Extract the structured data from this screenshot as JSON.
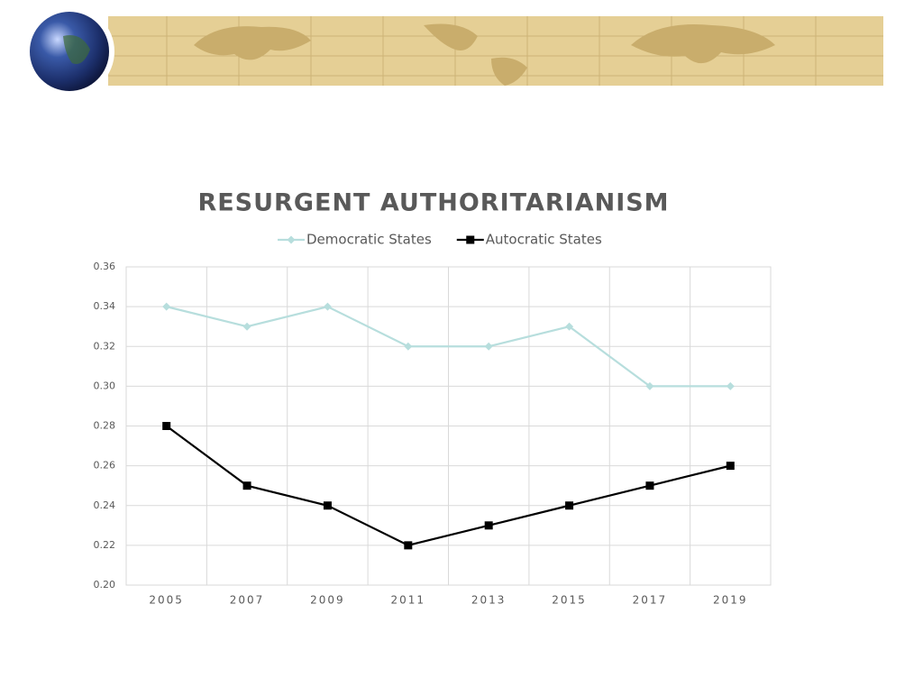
{
  "chart_data": {
    "type": "line",
    "title": "RESURGENT AUTHORITARIANISM",
    "categories": [
      "2005",
      "2007",
      "2009",
      "2011",
      "2013",
      "2015",
      "2017",
      "2019"
    ],
    "series": [
      {
        "name": "Democratic States",
        "color": "#b7dedd",
        "marker": "diamond",
        "values": [
          0.34,
          0.33,
          0.34,
          0.32,
          0.32,
          0.33,
          0.3,
          0.3
        ]
      },
      {
        "name": "Autocratic States",
        "color": "#000000",
        "marker": "square",
        "values": [
          0.28,
          0.25,
          0.24,
          0.22,
          0.23,
          0.24,
          0.25,
          0.26
        ]
      }
    ],
    "ylim": [
      0.2,
      0.36
    ],
    "yticks": [
      {
        "value": 0.2,
        "label": "0.20"
      },
      0.22,
      0.24,
      0.26,
      0.28,
      {
        "value": 0.3,
        "label": "0.30"
      },
      0.32,
      0.34,
      0.36
    ],
    "grid": true,
    "legend": "top"
  }
}
